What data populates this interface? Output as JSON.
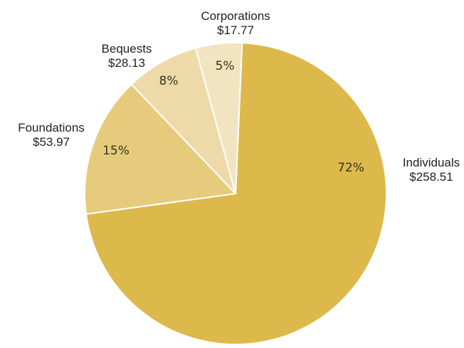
{
  "chart_data": {
    "type": "pie",
    "title": "",
    "start_angle_deg": 2.5,
    "direction": "clockwise",
    "categories": [
      "Individuals",
      "Foundations",
      "Bequests",
      "Corporations"
    ],
    "values": [
      258.51,
      53.97,
      28.13,
      17.77
    ],
    "value_labels": [
      "$258.51",
      "$53.97",
      "$28.13",
      "$17.77"
    ],
    "percent_labels": [
      "72%",
      "15%",
      "8%",
      "5%"
    ],
    "colors": [
      "#ddb94c",
      "#e6cb7c",
      "#eedaa8",
      "#f2e4c0"
    ],
    "legend": "none"
  }
}
